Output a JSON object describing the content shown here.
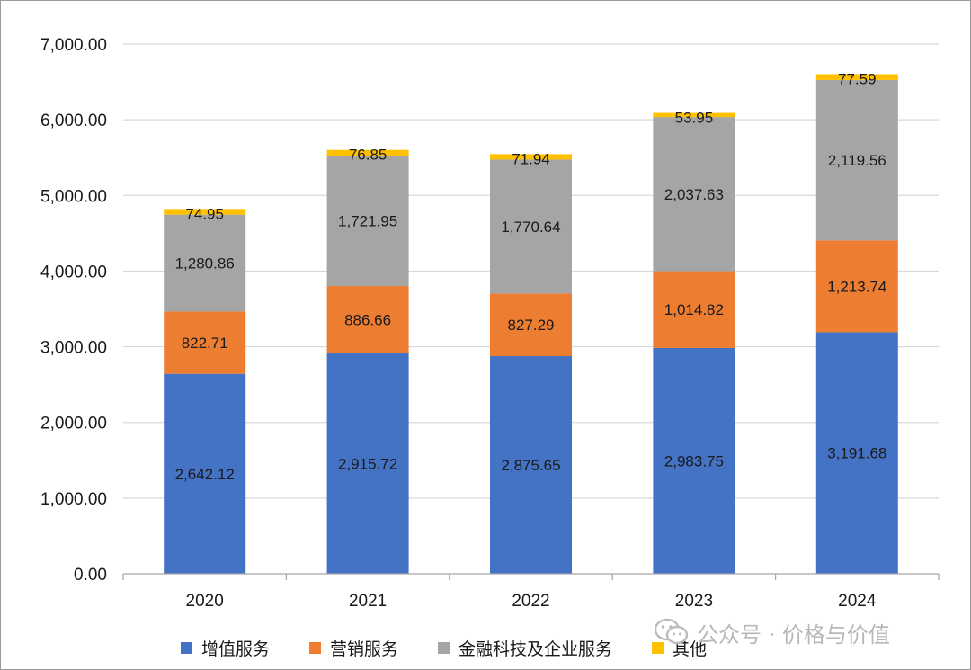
{
  "chart_data": {
    "type": "bar",
    "stacked": true,
    "categories": [
      "2020",
      "2021",
      "2022",
      "2023",
      "2024"
    ],
    "series": [
      {
        "name": "增值服务",
        "color": "#4472c4",
        "values": [
          2642.12,
          2915.72,
          2875.65,
          2983.75,
          3191.68
        ],
        "labels": [
          "2,642.12",
          "2,915.72",
          "2,875.65",
          "2,983.75",
          "3,191.68"
        ]
      },
      {
        "name": "营销服务",
        "color": "#ed7d31",
        "values": [
          822.71,
          886.66,
          827.29,
          1014.82,
          1213.74
        ],
        "labels": [
          "822.71",
          "886.66",
          "827.29",
          "1,014.82",
          "1,213.74"
        ]
      },
      {
        "name": "金融科技及企业服务",
        "color": "#a5a5a5",
        "values": [
          1280.86,
          1721.95,
          1770.64,
          2037.63,
          2119.56
        ],
        "labels": [
          "1,280.86",
          "1,721.95",
          "1,770.64",
          "2,037.63",
          "2,119.56"
        ]
      },
      {
        "name": "其他",
        "color": "#ffc000",
        "values": [
          74.95,
          76.85,
          71.94,
          53.95,
          77.59
        ],
        "labels": [
          "74.95",
          "76.85",
          "71.94",
          "53.95",
          "77.59"
        ]
      }
    ],
    "ylim": [
      0,
      7000
    ],
    "yticks": [
      0,
      1000,
      2000,
      3000,
      4000,
      5000,
      6000,
      7000
    ],
    "ytick_labels": [
      "0.00",
      "1,000.00",
      "2,000.00",
      "3,000.00",
      "4,000.00",
      "5,000.00",
      "6,000.00",
      "7,000.00"
    ],
    "grid": true,
    "legend_position": "bottom"
  },
  "watermark": {
    "text": "公众号 · 价格与价值",
    "icon": "wechat-icon"
  }
}
